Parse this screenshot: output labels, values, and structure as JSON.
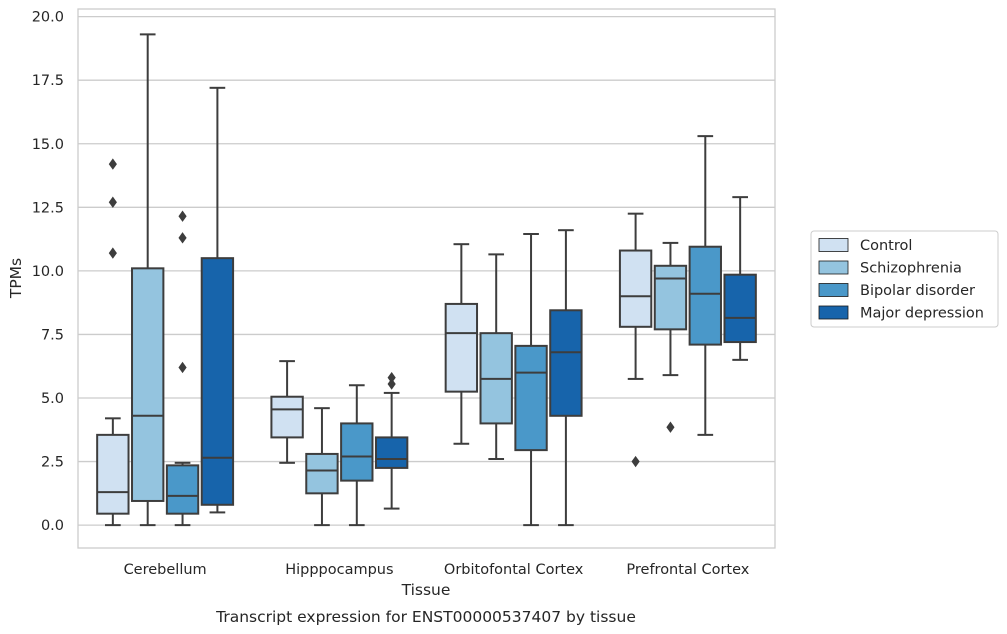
{
  "chart_data": {
    "type": "box",
    "title": "",
    "caption": "Transcript expression for ENST00000537407 by tissue",
    "xlabel": "Tissue",
    "ylabel": "TPMs",
    "ylim": [
      -0.9,
      20.3
    ],
    "yticks": [
      0.0,
      2.5,
      5.0,
      7.5,
      10.0,
      12.5,
      15.0,
      17.5,
      20.0
    ],
    "ytick_labels": [
      "0.0",
      "2.5",
      "5.0",
      "7.5",
      "10.0",
      "12.5",
      "15.0",
      "17.5",
      "20.0"
    ],
    "grid": "horizontal",
    "legend_position": "right",
    "categories": [
      "Cerebellum",
      "Hipppocampus",
      "Orbitofontal Cortex",
      "Prefrontal Cortex"
    ],
    "series": [
      {
        "name": "Control",
        "color": "#d0e1f2",
        "boxes": [
          {
            "whislo": 0.0,
            "q1": 0.45,
            "median": 1.3,
            "q3": 3.55,
            "whishi": 4.2,
            "fliers": [
              10.7,
              12.7,
              14.2
            ]
          },
          {
            "whislo": 2.45,
            "q1": 3.45,
            "median": 4.55,
            "q3": 5.05,
            "whishi": 6.45,
            "fliers": []
          },
          {
            "whislo": 3.2,
            "q1": 5.25,
            "median": 7.55,
            "q3": 8.7,
            "whishi": 11.05,
            "fliers": []
          },
          {
            "whislo": 5.75,
            "q1": 7.8,
            "median": 9.0,
            "q3": 10.8,
            "whishi": 12.25,
            "fliers": [
              2.5
            ]
          }
        ]
      },
      {
        "name": "Schizophrenia",
        "color": "#94c4df",
        "boxes": [
          {
            "whislo": 0.0,
            "q1": 0.95,
            "median": 4.3,
            "q3": 10.1,
            "whishi": 19.3,
            "fliers": []
          },
          {
            "whislo": 0.0,
            "q1": 1.25,
            "median": 2.15,
            "q3": 2.8,
            "whishi": 4.6,
            "fliers": []
          },
          {
            "whislo": 2.6,
            "q1": 4.0,
            "median": 5.75,
            "q3": 7.55,
            "whishi": 10.65,
            "fliers": []
          },
          {
            "whislo": 5.9,
            "q1": 7.7,
            "median": 9.7,
            "q3": 10.2,
            "whishi": 11.1,
            "fliers": [
              3.85
            ]
          }
        ]
      },
      {
        "name": "Bipolar disorder",
        "color": "#4a98c9",
        "boxes": [
          {
            "whislo": 0.0,
            "q1": 0.45,
            "median": 1.15,
            "q3": 2.35,
            "whishi": 2.45,
            "fliers": [
              6.2,
              11.3,
              12.15
            ]
          },
          {
            "whislo": 0.0,
            "q1": 1.75,
            "median": 2.7,
            "q3": 4.0,
            "whishi": 5.5,
            "fliers": []
          },
          {
            "whislo": 0.0,
            "q1": 2.95,
            "median": 6.0,
            "q3": 7.05,
            "whishi": 11.45,
            "fliers": []
          },
          {
            "whislo": 3.55,
            "q1": 7.1,
            "median": 9.1,
            "q3": 10.95,
            "whishi": 15.3,
            "fliers": []
          }
        ]
      },
      {
        "name": "Major depression",
        "color": "#1764ab",
        "boxes": [
          {
            "whislo": 0.5,
            "q1": 0.8,
            "median": 2.65,
            "q3": 10.5,
            "whishi": 17.2,
            "fliers": []
          },
          {
            "whislo": 0.65,
            "q1": 2.25,
            "median": 2.6,
            "q3": 3.45,
            "whishi": 5.2,
            "fliers": [
              5.55,
              5.8
            ]
          },
          {
            "whislo": 0.0,
            "q1": 4.3,
            "median": 6.8,
            "q3": 8.45,
            "whishi": 11.6,
            "fliers": []
          },
          {
            "whislo": 6.5,
            "q1": 7.2,
            "median": 8.15,
            "q3": 9.85,
            "whishi": 12.9,
            "fliers": []
          }
        ]
      }
    ]
  },
  "style": {
    "grid_color": "#cccccc",
    "frame_color": "#cccccc",
    "box_edge_color": "#3d3d3d"
  }
}
